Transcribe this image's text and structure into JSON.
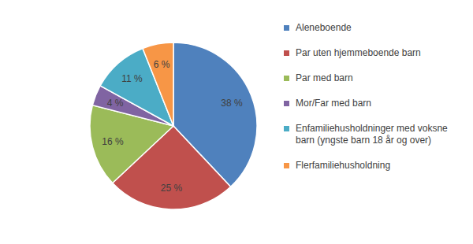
{
  "chart_data": {
    "type": "pie",
    "categories": [
      "Aleneboende",
      "Par uten hjemmeboende barn",
      "Par med barn",
      "Mor/Far med barn",
      "Enfamiliehusholdninger med voksne barn (yngste barn 18 år og over)",
      "Flerfamiliehusholdning"
    ],
    "values": [
      38,
      25,
      16,
      4,
      11,
      6
    ],
    "value_labels": [
      "38 %",
      "25 %",
      "16 %",
      "4 %",
      "11 %",
      "6 %"
    ],
    "colors": [
      "#4f81bd",
      "#c0504d",
      "#9bbb59",
      "#8064a2",
      "#4bacc6",
      "#f79646"
    ],
    "data_labels": true,
    "legend": "right"
  }
}
